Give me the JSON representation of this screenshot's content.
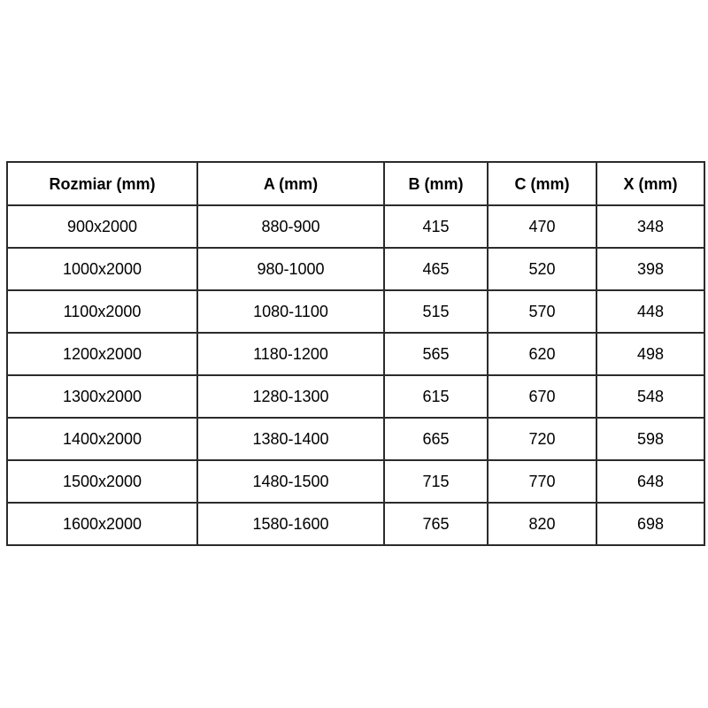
{
  "table": {
    "headers": [
      "Rozmiar (mm)",
      "A (mm)",
      "B (mm)",
      "C (mm)",
      "X (mm)"
    ],
    "rows": [
      [
        "900x2000",
        "880-900",
        "415",
        "470",
        "348"
      ],
      [
        "1000x2000",
        "980-1000",
        "465",
        "520",
        "398"
      ],
      [
        "1100x2000",
        "1080-1100",
        "515",
        "570",
        "448"
      ],
      [
        "1200x2000",
        "1180-1200",
        "565",
        "620",
        "498"
      ],
      [
        "1300x2000",
        "1280-1300",
        "615",
        "670",
        "548"
      ],
      [
        "1400x2000",
        "1380-1400",
        "665",
        "720",
        "598"
      ],
      [
        "1500x2000",
        "1480-1500",
        "715",
        "770",
        "648"
      ],
      [
        "1600x2000",
        "1580-1600",
        "765",
        "820",
        "698"
      ]
    ],
    "border_color": "#2b2b2b",
    "background_color": "#ffffff",
    "text_color": "#000000"
  }
}
